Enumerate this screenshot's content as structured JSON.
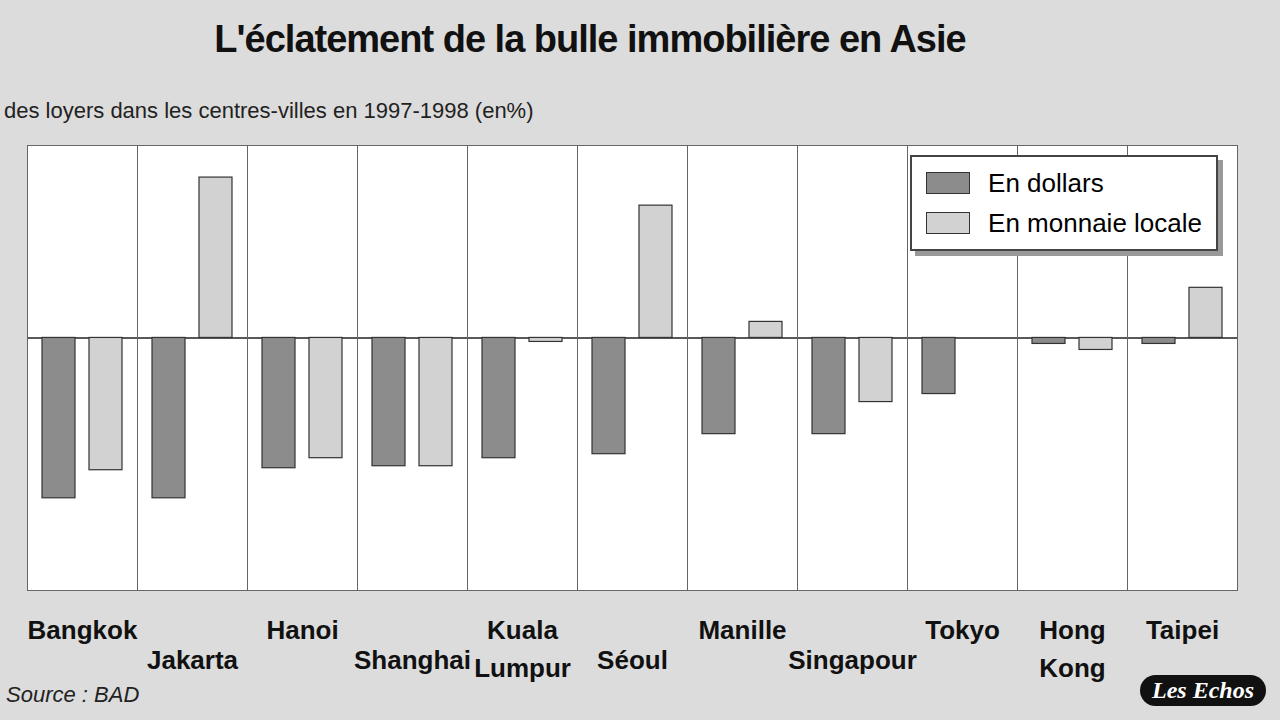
{
  "chart_data": {
    "type": "bar",
    "title": "L'éclatement de la bulle immobilière en Asie",
    "subtitle": "des loyers dans les centres-villes en 1997-1998 (en%)",
    "source": "Source : BAD",
    "logo": "Les Echos",
    "categories": [
      "Bangkok",
      "Jakarta",
      "Hanoi",
      "Shanghai",
      "Kuala Lumpur",
      "Séoul",
      "Manille",
      "Singapour",
      "Tokyo",
      "Hong Kong",
      "Taipei"
    ],
    "series": [
      {
        "name": "En dollars",
        "color": "#8c8c8c",
        "values": [
          -40,
          -40,
          -32.5,
          -32,
          -30,
          -29,
          -24,
          -24,
          -14,
          -1.5,
          -1.5
        ]
      },
      {
        "name": "En monnaie locale",
        "color": "#d2d2d2",
        "values": [
          -33,
          40,
          -30,
          -32,
          -1,
          33,
          4,
          -16,
          0,
          -3,
          12.5
        ]
      }
    ],
    "ylim": [
      -63,
      48
    ],
    "yticks": [
      0
    ],
    "tick_labels": false,
    "legend": "top-right"
  }
}
